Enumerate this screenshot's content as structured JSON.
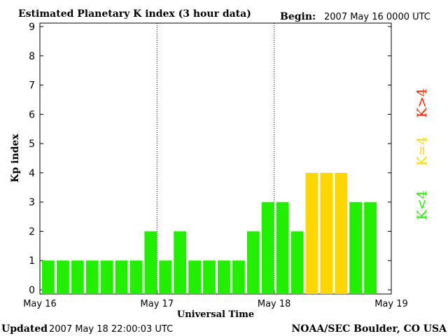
{
  "header": {
    "title": "Estimated Planetary K index (3 hour data)",
    "begin_label": "Begin:",
    "begin_value": "2007 May 16 0000 UTC"
  },
  "footer": {
    "updated_label": "Updated",
    "updated_value": "2007 May 18 22:00:03 UTC",
    "source": "NOAA/SEC Boulder, CO USA"
  },
  "colors": {
    "low": "#22ee00",
    "equal": "#ffd700",
    "high": "#ff2200",
    "border": "#000000",
    "background": "#ffffff"
  },
  "side_legend": [
    {
      "label": "K>4",
      "color": "#ff2200"
    },
    {
      "label": "K=4",
      "color": "#ffd700"
    },
    {
      "label": "K<4",
      "color": "#22ee00"
    }
  ],
  "chart_data": {
    "type": "bar",
    "title": "Estimated Planetary K index (3 hour data)",
    "xlabel": "Universal Time",
    "ylabel": "Kp index",
    "ylim": [
      0,
      9
    ],
    "yticks": [
      0,
      1,
      2,
      3,
      4,
      5,
      6,
      7,
      8,
      9
    ],
    "xticks": [
      "May 16",
      "May 17",
      "May 18",
      "May 19"
    ],
    "grid": false,
    "day_separators": [
      "May 17",
      "May 18"
    ],
    "bar_interval_hours": 3,
    "values": [
      1,
      1,
      1,
      1,
      1,
      1,
      1,
      2,
      1,
      2,
      1,
      1,
      1,
      1,
      2,
      3,
      3,
      2,
      4,
      4,
      4,
      3,
      3
    ]
  }
}
